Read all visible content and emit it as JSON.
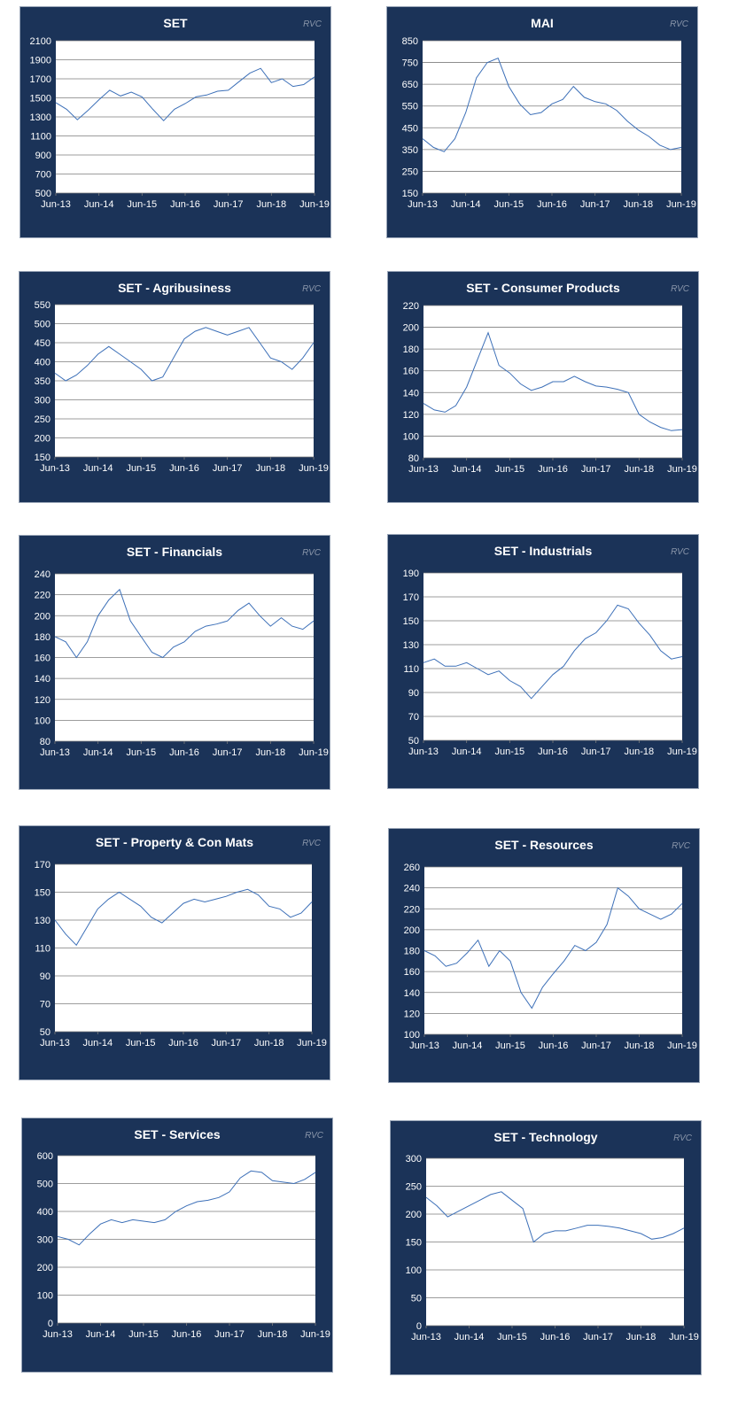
{
  "chart_data": [
    {
      "type": "line",
      "title": "SET",
      "watermark": "RVC",
      "color": "#3d70b8",
      "ylim": [
        500,
        2100
      ],
      "yticks": [
        "500",
        "700",
        "900",
        "1100",
        "1300",
        "1500",
        "1700",
        "1900",
        "2100"
      ],
      "xticks": [
        "Jun-13",
        "Jun-14",
        "Jun-15",
        "Jun-16",
        "Jun-17",
        "Jun-18",
        "Jun-19"
      ],
      "x": [
        "Jun-13",
        "Sep-13",
        "Dec-13",
        "Mar-14",
        "Jun-14",
        "Sep-14",
        "Dec-14",
        "Mar-15",
        "Jun-15",
        "Sep-15",
        "Dec-15",
        "Mar-16",
        "Jun-16",
        "Sep-16",
        "Dec-16",
        "Mar-17",
        "Jun-17",
        "Sep-17",
        "Dec-17",
        "Mar-18",
        "Jun-18",
        "Sep-18",
        "Dec-18",
        "Mar-19",
        "Jun-19"
      ],
      "values": [
        1450,
        1380,
        1270,
        1370,
        1480,
        1580,
        1520,
        1560,
        1510,
        1380,
        1260,
        1380,
        1440,
        1510,
        1530,
        1570,
        1580,
        1670,
        1760,
        1810,
        1660,
        1700,
        1620,
        1640,
        1720
      ]
    },
    {
      "type": "line",
      "title": "MAI",
      "watermark": "RVC",
      "color": "#3d70b8",
      "ylim": [
        150,
        850
      ],
      "yticks": [
        "150",
        "250",
        "350",
        "450",
        "550",
        "650",
        "750",
        "850"
      ],
      "xticks": [
        "Jun-13",
        "Jun-14",
        "Jun-15",
        "Jun-16",
        "Jun-17",
        "Jun-18",
        "Jun-19"
      ],
      "x": [
        "Jun-13",
        "Sep-13",
        "Dec-13",
        "Mar-14",
        "Jun-14",
        "Sep-14",
        "Dec-14",
        "Mar-15",
        "Jun-15",
        "Sep-15",
        "Dec-15",
        "Mar-16",
        "Jun-16",
        "Sep-16",
        "Dec-16",
        "Mar-17",
        "Jun-17",
        "Sep-17",
        "Dec-17",
        "Mar-18",
        "Jun-18",
        "Sep-18",
        "Dec-18",
        "Mar-19",
        "Jun-19"
      ],
      "values": [
        400,
        360,
        340,
        400,
        520,
        680,
        750,
        770,
        640,
        560,
        510,
        520,
        560,
        580,
        640,
        590,
        570,
        560,
        530,
        480,
        440,
        410,
        370,
        350,
        360
      ]
    },
    {
      "type": "line",
      "title": "SET - Agribusiness",
      "watermark": "RVC",
      "color": "#3d70b8",
      "ylim": [
        150,
        550
      ],
      "yticks": [
        "150",
        "200",
        "250",
        "300",
        "350",
        "400",
        "450",
        "500",
        "550"
      ],
      "xticks": [
        "Jun-13",
        "Jun-14",
        "Jun-15",
        "Jun-16",
        "Jun-17",
        "Jun-18",
        "Jun-19"
      ],
      "x": [
        "Jun-13",
        "Sep-13",
        "Dec-13",
        "Mar-14",
        "Jun-14",
        "Sep-14",
        "Dec-14",
        "Mar-15",
        "Jun-15",
        "Sep-15",
        "Dec-15",
        "Mar-16",
        "Jun-16",
        "Sep-16",
        "Dec-16",
        "Mar-17",
        "Jun-17",
        "Sep-17",
        "Dec-17",
        "Mar-18",
        "Jun-18",
        "Sep-18",
        "Dec-18",
        "Mar-19",
        "Jun-19"
      ],
      "values": [
        370,
        350,
        365,
        390,
        420,
        440,
        420,
        400,
        380,
        350,
        360,
        410,
        460,
        480,
        490,
        480,
        470,
        480,
        490,
        450,
        410,
        400,
        380,
        410,
        450
      ]
    },
    {
      "type": "line",
      "title": "SET - Consumer Products",
      "watermark": "RVC",
      "color": "#3d70b8",
      "ylim": [
        80,
        220
      ],
      "yticks": [
        "80",
        "100",
        "120",
        "140",
        "160",
        "180",
        "200",
        "220"
      ],
      "xticks": [
        "Jun-13",
        "Jun-14",
        "Jun-15",
        "Jun-16",
        "Jun-17",
        "Jun-18",
        "Jun-19"
      ],
      "x": [
        "Jun-13",
        "Sep-13",
        "Dec-13",
        "Mar-14",
        "Jun-14",
        "Sep-14",
        "Dec-14",
        "Mar-15",
        "Jun-15",
        "Sep-15",
        "Dec-15",
        "Mar-16",
        "Jun-16",
        "Sep-16",
        "Dec-16",
        "Mar-17",
        "Jun-17",
        "Sep-17",
        "Dec-17",
        "Mar-18",
        "Jun-18",
        "Sep-18",
        "Dec-18",
        "Mar-19",
        "Jun-19"
      ],
      "values": [
        130,
        124,
        122,
        128,
        145,
        170,
        195,
        165,
        158,
        148,
        142,
        145,
        150,
        150,
        155,
        150,
        146,
        145,
        143,
        140,
        120,
        113,
        108,
        105,
        106
      ]
    },
    {
      "type": "line",
      "title": "SET - Financials",
      "watermark": "RVC",
      "color": "#3d70b8",
      "ylim": [
        80,
        240
      ],
      "yticks": [
        "80",
        "100",
        "120",
        "140",
        "160",
        "180",
        "200",
        "220",
        "240"
      ],
      "xticks": [
        "Jun-13",
        "Jun-14",
        "Jun-15",
        "Jun-16",
        "Jun-17",
        "Jun-18",
        "Jun-19"
      ],
      "x": [
        "Jun-13",
        "Sep-13",
        "Dec-13",
        "Mar-14",
        "Jun-14",
        "Sep-14",
        "Dec-14",
        "Mar-15",
        "Jun-15",
        "Sep-15",
        "Dec-15",
        "Mar-16",
        "Jun-16",
        "Sep-16",
        "Dec-16",
        "Mar-17",
        "Jun-17",
        "Sep-17",
        "Dec-17",
        "Mar-18",
        "Jun-18",
        "Sep-18",
        "Dec-18",
        "Mar-19",
        "Jun-19"
      ],
      "values": [
        180,
        175,
        160,
        175,
        200,
        215,
        225,
        195,
        180,
        165,
        160,
        170,
        175,
        185,
        190,
        192,
        195,
        205,
        212,
        200,
        190,
        198,
        190,
        187,
        195
      ]
    },
    {
      "type": "line",
      "title": "SET - Industrials",
      "watermark": "RVC",
      "color": "#3d70b8",
      "ylim": [
        50,
        190
      ],
      "yticks": [
        "50",
        "70",
        "90",
        "110",
        "130",
        "150",
        "170",
        "190"
      ],
      "xticks": [
        "Jun-13",
        "Jun-14",
        "Jun-15",
        "Jun-16",
        "Jun-17",
        "Jun-18",
        "Jun-19"
      ],
      "x": [
        "Jun-13",
        "Sep-13",
        "Dec-13",
        "Mar-14",
        "Jun-14",
        "Sep-14",
        "Dec-14",
        "Mar-15",
        "Jun-15",
        "Sep-15",
        "Dec-15",
        "Mar-16",
        "Jun-16",
        "Sep-16",
        "Dec-16",
        "Mar-17",
        "Jun-17",
        "Sep-17",
        "Dec-17",
        "Mar-18",
        "Jun-18",
        "Sep-18",
        "Dec-18",
        "Mar-19",
        "Jun-19"
      ],
      "values": [
        115,
        118,
        112,
        112,
        115,
        110,
        105,
        108,
        100,
        95,
        85,
        95,
        105,
        112,
        125,
        135,
        140,
        150,
        163,
        160,
        148,
        138,
        125,
        118,
        120
      ]
    },
    {
      "type": "line",
      "title": "SET - Property & Con Mats",
      "watermark": "RVC",
      "color": "#3d70b8",
      "ylim": [
        50,
        170
      ],
      "yticks": [
        "50",
        "70",
        "90",
        "110",
        "130",
        "150",
        "170"
      ],
      "xticks": [
        "Jun-13",
        "Jun-14",
        "Jun-15",
        "Jun-16",
        "Jun-17",
        "Jun-18",
        "Jun-19"
      ],
      "x": [
        "Jun-13",
        "Sep-13",
        "Dec-13",
        "Mar-14",
        "Jun-14",
        "Sep-14",
        "Dec-14",
        "Mar-15",
        "Jun-15",
        "Sep-15",
        "Dec-15",
        "Mar-16",
        "Jun-16",
        "Sep-16",
        "Dec-16",
        "Mar-17",
        "Jun-17",
        "Sep-17",
        "Dec-17",
        "Mar-18",
        "Jun-18",
        "Sep-18",
        "Dec-18",
        "Mar-19",
        "Jun-19"
      ],
      "values": [
        130,
        120,
        112,
        125,
        138,
        145,
        150,
        145,
        140,
        132,
        128,
        135,
        142,
        145,
        143,
        145,
        147,
        150,
        152,
        148,
        140,
        138,
        132,
        135,
        143
      ]
    },
    {
      "type": "line",
      "title": "SET - Resources",
      "watermark": "RVC",
      "color": "#3d70b8",
      "ylim": [
        100,
        260
      ],
      "yticks": [
        "100",
        "120",
        "140",
        "160",
        "180",
        "200",
        "220",
        "240",
        "260"
      ],
      "xticks": [
        "Jun-13",
        "Jun-14",
        "Jun-15",
        "Jun-16",
        "Jun-17",
        "Jun-18",
        "Jun-19"
      ],
      "x": [
        "Jun-13",
        "Sep-13",
        "Dec-13",
        "Mar-14",
        "Jun-14",
        "Sep-14",
        "Dec-14",
        "Mar-15",
        "Jun-15",
        "Sep-15",
        "Dec-15",
        "Mar-16",
        "Jun-16",
        "Sep-16",
        "Dec-16",
        "Mar-17",
        "Jun-17",
        "Sep-17",
        "Dec-17",
        "Mar-18",
        "Jun-18",
        "Sep-18",
        "Dec-18",
        "Mar-19",
        "Jun-19"
      ],
      "values": [
        180,
        175,
        165,
        168,
        178,
        190,
        165,
        180,
        170,
        140,
        125,
        145,
        158,
        170,
        185,
        180,
        188,
        205,
        240,
        232,
        220,
        215,
        210,
        215,
        225
      ]
    },
    {
      "type": "line",
      "title": "SET - Services",
      "watermark": "RVC",
      "color": "#3d70b8",
      "ylim": [
        0,
        600
      ],
      "yticks": [
        "0",
        "100",
        "200",
        "300",
        "400",
        "500",
        "600"
      ],
      "xticks": [
        "Jun-13",
        "Jun-14",
        "Jun-15",
        "Jun-16",
        "Jun-17",
        "Jun-18",
        "Jun-19"
      ],
      "x": [
        "Jun-13",
        "Sep-13",
        "Dec-13",
        "Mar-14",
        "Jun-14",
        "Sep-14",
        "Dec-14",
        "Mar-15",
        "Jun-15",
        "Sep-15",
        "Dec-15",
        "Mar-16",
        "Jun-16",
        "Sep-16",
        "Dec-16",
        "Mar-17",
        "Jun-17",
        "Sep-17",
        "Dec-17",
        "Mar-18",
        "Jun-18",
        "Sep-18",
        "Dec-18",
        "Mar-19",
        "Jun-19"
      ],
      "values": [
        310,
        300,
        280,
        320,
        355,
        370,
        360,
        370,
        365,
        360,
        370,
        400,
        420,
        435,
        440,
        450,
        470,
        520,
        545,
        540,
        510,
        505,
        500,
        515,
        540
      ]
    },
    {
      "type": "line",
      "title": "SET - Technology",
      "watermark": "RVC",
      "color": "#3d70b8",
      "ylim": [
        0,
        300
      ],
      "yticks": [
        "0",
        "50",
        "100",
        "150",
        "200",
        "250",
        "300"
      ],
      "xticks": [
        "Jun-13",
        "Jun-14",
        "Jun-15",
        "Jun-16",
        "Jun-17",
        "Jun-18",
        "Jun-19"
      ],
      "x": [
        "Jun-13",
        "Sep-13",
        "Dec-13",
        "Mar-14",
        "Jun-14",
        "Sep-14",
        "Dec-14",
        "Mar-15",
        "Jun-15",
        "Sep-15",
        "Dec-15",
        "Mar-16",
        "Jun-16",
        "Sep-16",
        "Dec-16",
        "Mar-17",
        "Jun-17",
        "Sep-17",
        "Dec-17",
        "Mar-18",
        "Jun-18",
        "Sep-18",
        "Dec-18",
        "Mar-19",
        "Jun-19"
      ],
      "values": [
        230,
        215,
        195,
        205,
        215,
        225,
        235,
        240,
        225,
        210,
        150,
        165,
        170,
        170,
        175,
        180,
        180,
        178,
        175,
        170,
        165,
        155,
        158,
        165,
        175
      ]
    }
  ]
}
